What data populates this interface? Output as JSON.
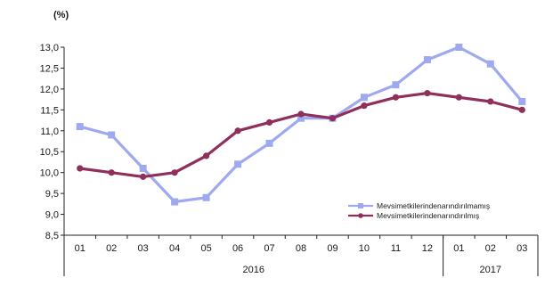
{
  "chart_data": {
    "type": "line",
    "unit_label": "(%)",
    "categories": [
      "01",
      "02",
      "03",
      "04",
      "05",
      "06",
      "07",
      "08",
      "09",
      "10",
      "11",
      "12",
      "01",
      "02",
      "03"
    ],
    "year_groups": [
      {
        "label": "2016",
        "from": 0,
        "to": 11
      },
      {
        "label": "2017",
        "from": 12,
        "to": 14
      }
    ],
    "ylim": [
      8.5,
      13.0
    ],
    "yticks": [
      "8,5",
      "9,0",
      "9,5",
      "10,0",
      "10,5",
      "11,0",
      "11,5",
      "12,0",
      "12,5",
      "13,0"
    ],
    "grid": false,
    "legend_position": "bottom-right",
    "series": [
      {
        "name": "Mevsimetkilerindenarındırılmamış",
        "color": "#9ea9ef",
        "marker": "square",
        "values": [
          11.1,
          10.9,
          10.1,
          9.3,
          9.4,
          10.2,
          10.7,
          11.3,
          11.3,
          11.8,
          12.1,
          12.7,
          13.0,
          12.6,
          11.7
        ]
      },
      {
        "name": "Mevsimetkilerindenarındırılmış",
        "color": "#8e2f5c",
        "marker": "circle",
        "values": [
          10.1,
          10.0,
          9.9,
          10.0,
          10.4,
          11.0,
          11.2,
          11.4,
          11.3,
          11.6,
          11.8,
          11.9,
          11.8,
          11.7,
          11.5
        ]
      }
    ]
  }
}
